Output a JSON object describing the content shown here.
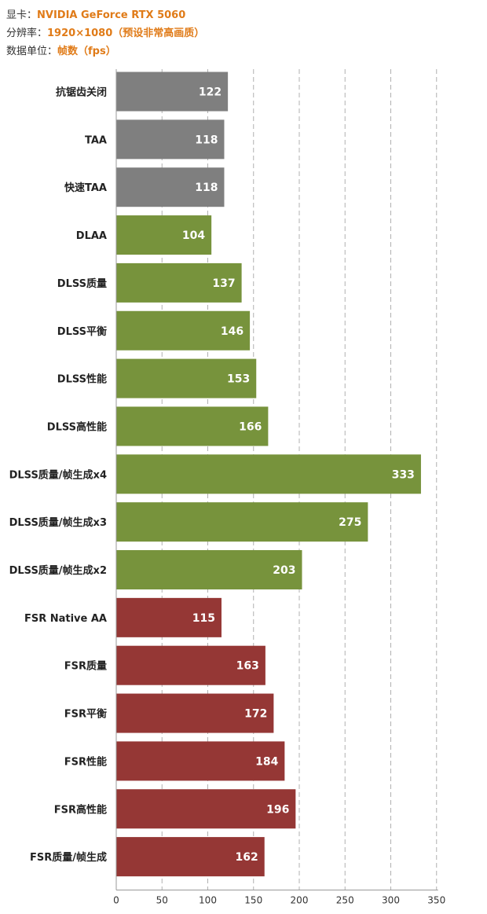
{
  "header": {
    "gpu_label": "显卡：",
    "gpu_value": "NVIDIA GeForce RTX 5060",
    "res_label": "分辨率：",
    "res_value": "1920×1080（预设非常高画质）",
    "unit_label": "数据单位：",
    "unit_value": "帧数（fps）"
  },
  "colors": {
    "gray": "#7f7f7f",
    "green": "#77933c",
    "red": "#953735",
    "header_accent": "#e07b18"
  },
  "chart_data": {
    "type": "bar",
    "orientation": "horizontal",
    "categories": [
      "抗锯齿关闭",
      "TAA",
      "快速TAA",
      "DLAA",
      "DLSS质量",
      "DLSS平衡",
      "DLSS性能",
      "DLSS高性能",
      "DLSS质量/帧生成x4",
      "DLSS质量/帧生成x3",
      "DLSS质量/帧生成x2",
      "FSR Native AA",
      "FSR质量",
      "FSR平衡",
      "FSR性能",
      "FSR高性能",
      "FSR质量/帧生成"
    ],
    "values": [
      122,
      118,
      118,
      104,
      137,
      146,
      153,
      166,
      333,
      275,
      203,
      115,
      163,
      172,
      184,
      196,
      162
    ],
    "bar_colors": [
      "gray",
      "gray",
      "gray",
      "green",
      "green",
      "green",
      "green",
      "green",
      "green",
      "green",
      "green",
      "red",
      "red",
      "red",
      "red",
      "red",
      "red"
    ],
    "xlim": [
      0,
      350
    ],
    "xticks": [
      0,
      50,
      100,
      150,
      200,
      250,
      300,
      350
    ],
    "grid": "vertical dashed",
    "legend": "none"
  }
}
